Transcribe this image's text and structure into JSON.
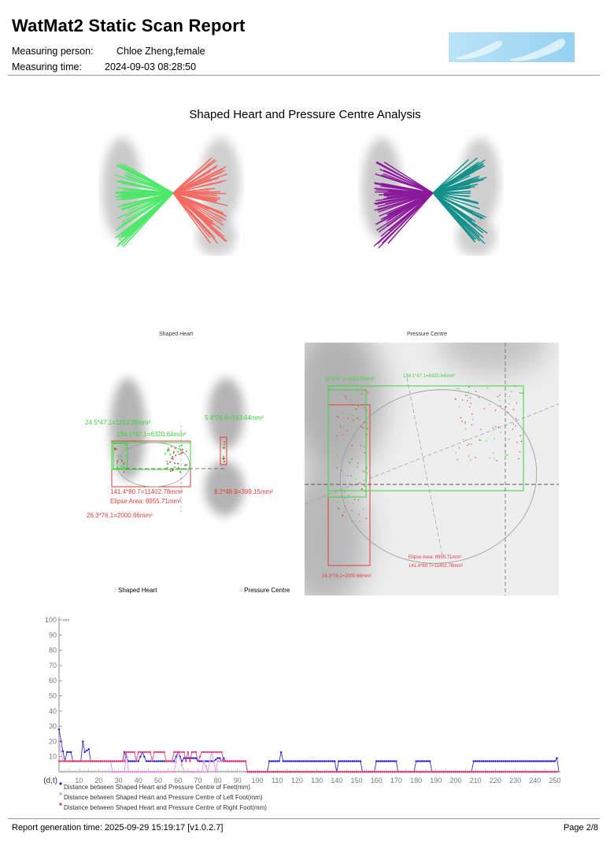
{
  "header": {
    "title": "WatMat2 Static Scan Report",
    "measuring_person_label": "Measuring person:",
    "measuring_person": "Chloe Zheng,female",
    "measuring_time_label": "Measuring time:",
    "measuring_time": "2024-09-03 08:28:50",
    "logo": "footprints-logo"
  },
  "section_title": "Shaped Heart and Pressure Centre Analysis",
  "colors": {
    "shaped_heart": "#3bd43b",
    "pressure_centre": "#e63b3b",
    "left_fan_green": "#4fe86a",
    "left_fan_red": "#f36b63",
    "right_fan_purple": "#8b1a9a",
    "right_fan_teal": "#14908a",
    "feet": "#1a1adb",
    "left_foot": "#e58ae5",
    "right_foot": "#e8336b"
  },
  "shaped_heart_panel": {
    "title": "Shaped Heart",
    "labels": {
      "left_green": "24.5*47.1=1153.39mm²",
      "center_green": "134.1*47.1=6320.64mm²",
      "right_green": "5.4*26.6=143.64mm²",
      "center_red": "141.4*80.7=11402.78mm²",
      "ellipse": "Elipse Area: 8955.71mm²",
      "right_red": "8.2*48.9=399.15mm²",
      "left_red": "26.3*76.1=2000.66mm²"
    }
  },
  "pressure_centre_panel": {
    "title": "Pressure Centre",
    "labels": {
      "left_green": "24.5*47.1=1153.39mm²",
      "center_green": "134.1*47.1=6320.64mm²",
      "ellipse": "Elipse Area: 8955.71mm²",
      "center_red": "141.4*80.7=11402.78mm²",
      "left_red": "26.3*76.1=2000.66mm²"
    }
  },
  "legend": {
    "shaped_heart": "Shaped Heart",
    "pressure_centre": "Pressure Centre"
  },
  "chart_data": {
    "type": "line",
    "y_unit": "mm",
    "x_axis_label": "(d,t)",
    "ylim": [
      0,
      100
    ],
    "xlim": [
      0,
      252
    ],
    "y_ticks": [
      10,
      20,
      30,
      40,
      50,
      60,
      70,
      80,
      90,
      100
    ],
    "x_ticks": [
      10,
      20,
      30,
      40,
      50,
      60,
      70,
      80,
      90,
      100,
      110,
      120,
      130,
      140,
      150,
      160,
      170,
      180,
      190,
      200,
      210,
      220,
      230,
      240,
      250
    ],
    "series": [
      {
        "name": "Distance between Shaped Heart and Pressure Centre of  Feet(mm)",
        "color": "#1a1adb",
        "points": [
          [
            0,
            28
          ],
          [
            1,
            20
          ],
          [
            3,
            7
          ],
          [
            4,
            13
          ],
          [
            6,
            13
          ],
          [
            7,
            7
          ],
          [
            11,
            7
          ],
          [
            12,
            20
          ],
          [
            13,
            13
          ],
          [
            15,
            15
          ],
          [
            16,
            7
          ],
          [
            32,
            7
          ],
          [
            33,
            13
          ],
          [
            35,
            7
          ],
          [
            40,
            7
          ],
          [
            42,
            13
          ],
          [
            44,
            7
          ],
          [
            58,
            7
          ],
          [
            60,
            13
          ],
          [
            62,
            7
          ],
          [
            63,
            9
          ],
          [
            69,
            9
          ],
          [
            70,
            7
          ],
          [
            78,
            7
          ],
          [
            80,
            9
          ],
          [
            81,
            9
          ],
          [
            82,
            7
          ],
          [
            83,
            9
          ],
          [
            84,
            7
          ],
          [
            94,
            7
          ],
          [
            95,
            0
          ],
          [
            105,
            0
          ],
          [
            106,
            7
          ],
          [
            111,
            7
          ],
          [
            112,
            13
          ],
          [
            113,
            7
          ],
          [
            139,
            7
          ],
          [
            140,
            0
          ],
          [
            141,
            7
          ],
          [
            152,
            7
          ],
          [
            153,
            0
          ],
          [
            159,
            0
          ],
          [
            160,
            7
          ],
          [
            170,
            7
          ],
          [
            171,
            0
          ],
          [
            179,
            0
          ],
          [
            180,
            7
          ],
          [
            187,
            7
          ],
          [
            188,
            0
          ],
          [
            208,
            0
          ],
          [
            209,
            7
          ],
          [
            250,
            7
          ],
          [
            251,
            9
          ],
          [
            252,
            0
          ]
        ]
      },
      {
        "name": "Distance between Shaped Heart and Pressure Centre of Left Foot(mm)",
        "color": "#e58ae5",
        "points": [
          [
            0,
            20
          ],
          [
            2,
            7
          ],
          [
            26,
            7
          ],
          [
            27,
            0
          ],
          [
            33,
            0
          ],
          [
            34,
            13
          ],
          [
            35,
            0
          ],
          [
            58,
            0
          ],
          [
            60,
            13
          ],
          [
            63,
            0
          ],
          [
            72,
            0
          ],
          [
            73,
            7
          ],
          [
            75,
            0
          ],
          [
            77,
            13
          ],
          [
            79,
            0
          ],
          [
            80,
            7
          ],
          [
            94,
            7
          ],
          [
            95,
            0
          ],
          [
            252,
            0
          ]
        ]
      },
      {
        "name": "Distance between Shaped Heart and Pressure Centre of Right Foot(mm)",
        "color": "#e8336b",
        "points": [
          [
            0,
            7
          ],
          [
            16,
            7
          ],
          [
            17,
            7
          ],
          [
            33,
            7
          ],
          [
            34,
            13
          ],
          [
            38,
            13
          ],
          [
            39,
            7
          ],
          [
            40,
            13
          ],
          [
            46,
            13
          ],
          [
            47,
            7
          ],
          [
            48,
            13
          ],
          [
            53,
            13
          ],
          [
            54,
            7
          ],
          [
            57,
            7
          ],
          [
            58,
            13
          ],
          [
            63,
            13
          ],
          [
            64,
            7
          ],
          [
            65,
            13
          ],
          [
            66,
            7
          ],
          [
            67,
            13
          ],
          [
            69,
            13
          ],
          [
            70,
            7
          ],
          [
            72,
            13
          ],
          [
            82,
            13
          ],
          [
            83,
            7
          ],
          [
            94,
            7
          ],
          [
            95,
            0
          ],
          [
            252,
            0
          ]
        ]
      }
    ]
  },
  "footer": {
    "generation": "Report generation time: 2025-09-29 15:19:17 [v1.0.2.7]",
    "page": "Page 2/8"
  }
}
